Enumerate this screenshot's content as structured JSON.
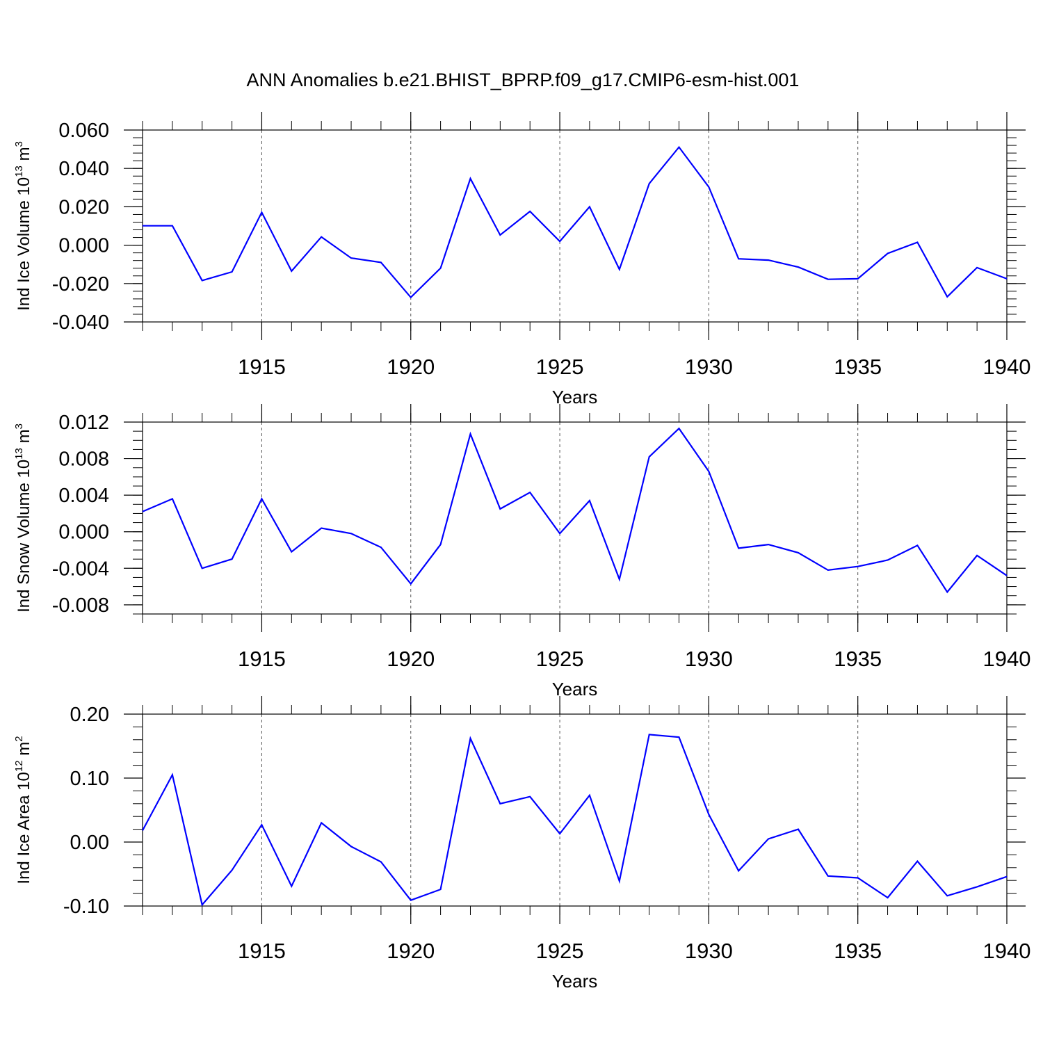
{
  "title": "ANN Anomalies b.e21.BHIST_BPRP.f09_g17.CMIP6-esm-hist.001",
  "colors": {
    "line": "#0000ff",
    "axis": "#000000",
    "grid": "#555555"
  },
  "chart_data": [
    {
      "type": "line",
      "ylabel": {
        "prefix": "Ind Ice Volume 10",
        "exp": "13",
        "unit": " m",
        "unit_exp": "3"
      },
      "xlabel": "Years",
      "xlim": [
        1911,
        1940
      ],
      "xticks": [
        1915,
        1920,
        1925,
        1930,
        1935,
        1940
      ],
      "xtick_labels": [
        "1915",
        "1920",
        "1925",
        "1930",
        "1935",
        "1940"
      ],
      "ylim": [
        -0.04,
        0.06
      ],
      "yticks": [
        -0.04,
        -0.02,
        0.0,
        0.02,
        0.04,
        0.06
      ],
      "ytick_labels": [
        "-0.040",
        "-0.020",
        "0.000",
        "0.020",
        "0.040",
        "0.060"
      ],
      "ytick_minor": 0.004,
      "x": [
        1911,
        1912,
        1913,
        1914,
        1915,
        1916,
        1917,
        1918,
        1919,
        1920,
        1921,
        1922,
        1923,
        1924,
        1925,
        1926,
        1927,
        1928,
        1929,
        1930,
        1931,
        1932,
        1933,
        1934,
        1935,
        1936,
        1937,
        1938,
        1939,
        1940
      ],
      "values": [
        0.0101,
        0.0101,
        -0.0184,
        -0.0139,
        0.0171,
        -0.0135,
        0.0043,
        -0.0067,
        -0.009,
        -0.0272,
        -0.012,
        0.0347,
        0.0053,
        0.0176,
        0.002,
        0.02,
        -0.0126,
        0.0321,
        0.0511,
        0.0303,
        -0.0071,
        -0.0078,
        -0.0114,
        -0.0178,
        -0.0175,
        -0.0043,
        0.0015,
        -0.0269,
        -0.0117,
        -0.0175
      ]
    },
    {
      "type": "line",
      "ylabel": {
        "prefix": "Ind Snow Volume 10",
        "exp": "13",
        "unit": " m",
        "unit_exp": "3"
      },
      "xlabel": "Years",
      "xlim": [
        1911,
        1940
      ],
      "xticks": [
        1915,
        1920,
        1925,
        1930,
        1935,
        1940
      ],
      "xtick_labels": [
        "1915",
        "1920",
        "1925",
        "1930",
        "1935",
        "1940"
      ],
      "ylim": [
        -0.009,
        0.012
      ],
      "yticks": [
        -0.008,
        -0.004,
        0.0,
        0.004,
        0.008,
        0.012
      ],
      "ytick_labels": [
        "-0.008",
        "-0.004",
        "0.000",
        "0.004",
        "0.008",
        "0.012"
      ],
      "ytick_minor": 0.001,
      "x": [
        1911,
        1912,
        1913,
        1914,
        1915,
        1916,
        1917,
        1918,
        1919,
        1920,
        1921,
        1922,
        1923,
        1924,
        1925,
        1926,
        1927,
        1928,
        1929,
        1930,
        1931,
        1932,
        1933,
        1934,
        1935,
        1936,
        1937,
        1938,
        1939,
        1940
      ],
      "values": [
        0.0022,
        0.0036,
        -0.004,
        -0.003,
        0.0036,
        -0.0022,
        0.0004,
        -0.0002,
        -0.0017,
        -0.0057,
        -0.0014,
        0.0107,
        0.0025,
        0.0043,
        -0.0002,
        0.0034,
        -0.0052,
        0.0082,
        0.0113,
        0.0066,
        -0.0018,
        -0.0014,
        -0.0023,
        -0.0042,
        -0.0038,
        -0.0031,
        -0.0015,
        -0.0066,
        -0.0026,
        -0.0048
      ]
    },
    {
      "type": "line",
      "ylabel": {
        "prefix": "Ind Ice Area 10",
        "exp": "12",
        "unit": " m",
        "unit_exp": "2"
      },
      "xlabel": "Years",
      "xlim": [
        1911,
        1940
      ],
      "xticks": [
        1915,
        1920,
        1925,
        1930,
        1935,
        1940
      ],
      "xtick_labels": [
        "1915",
        "1920",
        "1925",
        "1930",
        "1935",
        "1940"
      ],
      "ylim": [
        -0.1,
        0.2
      ],
      "yticks": [
        -0.1,
        0.0,
        0.1,
        0.2
      ],
      "ytick_labels": [
        "-0.10",
        "0.00",
        "0.10",
        "0.20"
      ],
      "ytick_minor": 0.02,
      "x": [
        1911,
        1912,
        1913,
        1914,
        1915,
        1916,
        1917,
        1918,
        1919,
        1920,
        1921,
        1922,
        1923,
        1924,
        1925,
        1926,
        1927,
        1928,
        1929,
        1930,
        1931,
        1932,
        1933,
        1934,
        1935,
        1936,
        1937,
        1938,
        1939,
        1940
      ],
      "values": [
        0.018,
        0.105,
        -0.098,
        -0.044,
        0.027,
        -0.069,
        0.03,
        -0.007,
        -0.031,
        -0.091,
        -0.074,
        0.162,
        0.06,
        0.071,
        0.013,
        0.073,
        -0.061,
        0.168,
        0.164,
        0.043,
        -0.045,
        0.005,
        0.02,
        -0.053,
        -0.056,
        -0.087,
        -0.03,
        -0.084,
        -0.07,
        -0.054
      ]
    }
  ]
}
